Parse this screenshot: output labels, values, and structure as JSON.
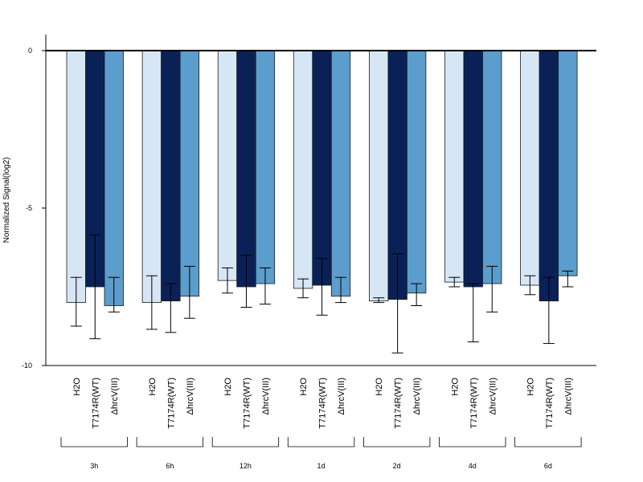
{
  "chart_data": {
    "type": "bar",
    "title": "",
    "xlabel": "",
    "ylabel": "Normalized Signal(log2)",
    "ylim": [
      -10,
      0.5
    ],
    "yticks": [
      0,
      -5,
      -10
    ],
    "ytick_labels": [
      "0",
      "-5",
      "-10"
    ],
    "grid": false,
    "bar_labels": [
      "H2O",
      "T7174R(WT)",
      "ΔhrcV(III)"
    ],
    "groups": [
      "3h",
      "6h",
      "12h",
      "1d",
      "2d",
      "4d",
      "6d"
    ],
    "series": [
      {
        "label": "H2O",
        "color": "#d6e6f5",
        "values": [
          -8.0,
          -8.0,
          -7.3,
          -7.55,
          -7.95,
          -7.35,
          -7.45
        ],
        "err_upper": [
          -7.2,
          -7.15,
          -6.9,
          -7.25,
          -7.85,
          -7.2,
          -7.15
        ],
        "err_lower": [
          -8.75,
          -8.85,
          -7.7,
          -7.85,
          -8.0,
          -7.5,
          -7.75
        ]
      },
      {
        "label": "T7174R(WT)",
        "color": "#0a2158",
        "values": [
          -7.5,
          -7.95,
          -7.5,
          -7.45,
          -7.9,
          -7.5,
          -7.95
        ],
        "err_upper": [
          -5.85,
          -7.4,
          -6.5,
          -6.6,
          -6.45,
          -7.4,
          -7.2
        ],
        "err_lower": [
          -9.15,
          -8.95,
          -8.15,
          -8.4,
          -9.6,
          -9.25,
          -9.3
        ]
      },
      {
        "label": "ΔhrcV(III)",
        "color": "#5b9dcc",
        "values": [
          -8.1,
          -7.8,
          -7.4,
          -7.8,
          -7.7,
          -7.4,
          -7.15
        ],
        "err_upper": [
          -7.2,
          -6.85,
          -6.9,
          -7.2,
          -7.4,
          -6.85,
          -7.0
        ],
        "err_lower": [
          -8.3,
          -8.5,
          -8.05,
          -8.0,
          -8.1,
          -8.3,
          -7.5
        ]
      }
    ]
  }
}
